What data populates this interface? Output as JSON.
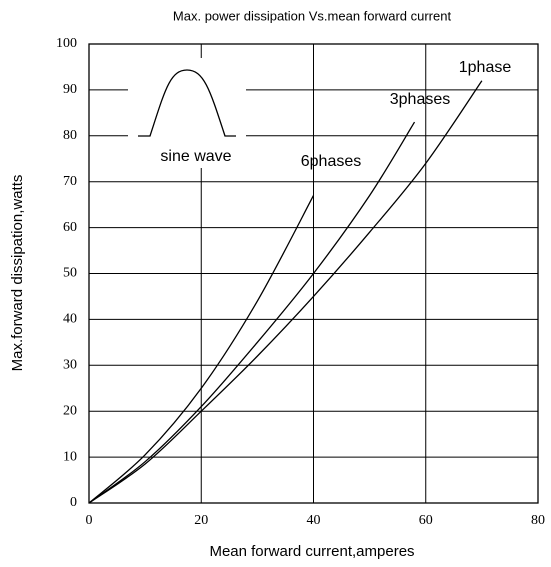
{
  "chart_data": {
    "type": "line",
    "title": "Max. power dissipation  Vs.mean forward current",
    "x_label": "Mean forward  current,amperes",
    "y_label": "Max.forward  dissipation,watts",
    "annotation": "sine wave",
    "series": [
      {
        "name": "1phase",
        "color": "#000000",
        "x": [
          0,
          10,
          20,
          30,
          40,
          50,
          60,
          70
        ],
        "values": [
          0,
          8.5,
          20,
          32,
          45,
          59,
          74,
          92
        ]
      },
      {
        "name": "3phases",
        "color": "#000000",
        "x": [
          0,
          10,
          20,
          30,
          40,
          50,
          58
        ],
        "values": [
          0,
          9,
          21,
          35,
          50,
          67,
          83
        ]
      },
      {
        "name": "6phases",
        "color": "#000000",
        "x": [
          0,
          10,
          20,
          30,
          40
        ],
        "values": [
          0,
          10.5,
          25,
          44,
          67
        ]
      }
    ],
    "xlim": [
      0,
      80
    ],
    "xticks": [
      0,
      20,
      40,
      60,
      80
    ],
    "ylim": [
      0,
      100
    ],
    "yticks": [
      0,
      10,
      20,
      30,
      40,
      50,
      60,
      70,
      80,
      90,
      100
    ],
    "grid": true
  }
}
